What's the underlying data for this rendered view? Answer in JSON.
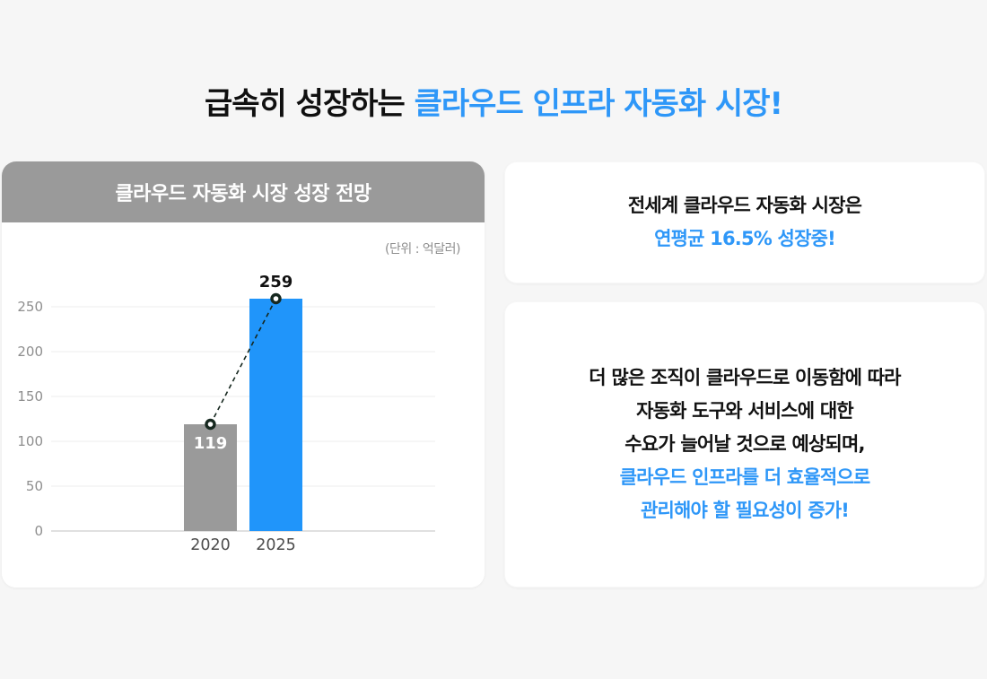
{
  "colors": {
    "accent_text": "#2e97f8",
    "bar_blue": "#2095fa",
    "bar_gray": "#9a9a9a",
    "header_gray": "#9a9a9a",
    "background": "#f6f6f6",
    "grid_line": "#ececec",
    "axis_base_line": "#d6d6d6",
    "tick_label": "#8e8e8e",
    "x_label": "#4d4d4d",
    "connector": "#16281f"
  },
  "title": {
    "black": "급속히 성장하는 ",
    "blue": "클라우드 인프라 자동화 시장!"
  },
  "chart_card": {
    "header": "클라우드 자동화 시장 성장 전망",
    "unit_label": "(단위 : 억달러)"
  },
  "chart_data": {
    "type": "bar",
    "title": "클라우드 자동화 시장 성장 전망",
    "unit": "억달러",
    "categories": [
      "2020",
      "2025"
    ],
    "values": [
      119,
      259
    ],
    "bar_colors": [
      "#9a9a9a",
      "#2095fa"
    ],
    "value_label_colors": [
      "#ffffff",
      "#111111"
    ],
    "value_label_positions": [
      "inside",
      "above"
    ],
    "xlabel": "",
    "ylabel": "",
    "ylim": [
      0,
      250
    ],
    "yticks": [
      0,
      50,
      100,
      150,
      200,
      250
    ],
    "grid": true,
    "legend": false,
    "connector": {
      "style": "dashed",
      "color": "#16281f",
      "markers": "circle"
    }
  },
  "info_cards": [
    {
      "id": "growth-rate",
      "lines": [
        {
          "text": "전세계 클라우드 자동화 시장은",
          "emphasis": false
        },
        {
          "text": "연평균 16.5% 성장중!",
          "emphasis": true
        }
      ]
    },
    {
      "id": "demand-forecast",
      "lines": [
        {
          "text": "더 많은 조직이 클라우드로 이동함에 따라",
          "emphasis": false
        },
        {
          "text": "자동화 도구와 서비스에 대한",
          "emphasis": false
        },
        {
          "text": "수요가 늘어날 것으로 예상되며,",
          "emphasis": false
        },
        {
          "text": "클라우드 인프라를 더 효율적으로",
          "emphasis": true
        },
        {
          "text": "관리해야 할 필요성이 증가!",
          "emphasis": true
        }
      ]
    }
  ]
}
